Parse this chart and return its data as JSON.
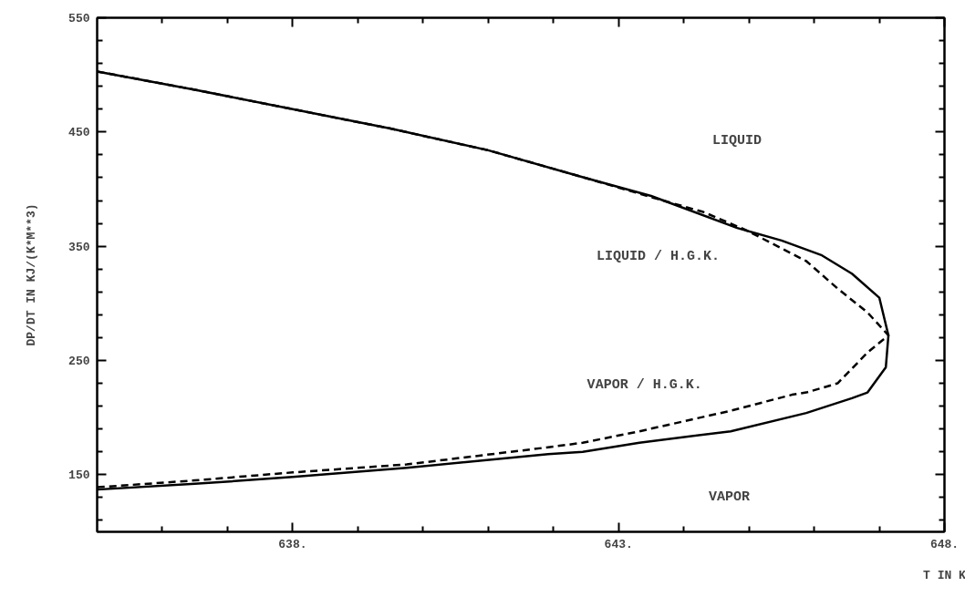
{
  "chart_data": {
    "type": "line",
    "xlabel": "T IN K",
    "ylabel": "DP/DT IN KJ/(K*M**3)",
    "xlim": [
      635,
      648
    ],
    "ylim": [
      100,
      550
    ],
    "xticks": [
      {
        "value": 636,
        "label": null
      },
      {
        "value": 637,
        "label": null
      },
      {
        "value": 638,
        "label": "638."
      },
      {
        "value": 639,
        "label": null
      },
      {
        "value": 640,
        "label": null
      },
      {
        "value": 641,
        "label": null
      },
      {
        "value": 642,
        "label": null
      },
      {
        "value": 643,
        "label": "643."
      },
      {
        "value": 644,
        "label": null
      },
      {
        "value": 645,
        "label": null
      },
      {
        "value": 646,
        "label": null
      },
      {
        "value": 647,
        "label": null
      },
      {
        "value": 648,
        "label": "648."
      }
    ],
    "yticks": [
      {
        "value": 110,
        "label": null
      },
      {
        "value": 130,
        "label": null
      },
      150,
      {
        "value": 170,
        "label": null
      },
      {
        "value": 190,
        "label": null
      },
      {
        "value": 210,
        "label": null
      },
      {
        "value": 230,
        "label": null
      },
      250,
      {
        "value": 270,
        "label": null
      },
      {
        "value": 290,
        "label": null
      },
      {
        "value": 310,
        "label": null
      },
      {
        "value": 330,
        "label": null
      },
      350,
      {
        "value": 370,
        "label": null
      },
      {
        "value": 390,
        "label": null
      },
      {
        "value": 410,
        "label": null
      },
      {
        "value": 430,
        "label": null
      },
      450,
      {
        "value": 470,
        "label": null
      },
      {
        "value": 490,
        "label": null
      },
      {
        "value": 510,
        "label": null
      },
      {
        "value": 530,
        "label": null
      },
      550
    ],
    "grid": false,
    "series": [
      {
        "color": "#000000",
        "line_style": "solid",
        "x": [
          635.0,
          636.5,
          638.0,
          639.5,
          641.0,
          642.48,
          643.5,
          644.82,
          645.5,
          646.12,
          646.58,
          647.0,
          647.14,
          647.1,
          646.82,
          646.58,
          645.88,
          644.72,
          643.32,
          642.45,
          641.92,
          639.75,
          638.0,
          636.5,
          635.0
        ],
        "values": [
          503,
          487,
          470,
          453,
          434,
          410,
          394,
          366,
          355,
          342,
          326,
          305,
          272,
          244,
          222,
          217,
          204,
          188,
          178,
          170,
          168,
          156,
          148,
          142,
          137
        ]
      },
      {
        "color": "#000000",
        "line_style": "dashed",
        "x": [
          635.0,
          636.5,
          638.0,
          639.5,
          641.0,
          642.48,
          643.5,
          644.3,
          644.96,
          645.88,
          646.36,
          646.82,
          647.14,
          646.82,
          646.36,
          645.88,
          645.66,
          644.72,
          643.32,
          642.45,
          641.92,
          639.75,
          638.0,
          636.5,
          635.0
        ],
        "values": [
          503,
          487,
          470,
          453,
          434,
          410,
          393,
          380,
          364,
          337,
          313,
          292,
          272,
          257,
          230,
          222,
          220,
          206,
          188,
          178,
          174,
          159,
          152,
          145,
          139
        ]
      }
    ],
    "annotations": [
      "LIQUID",
      "LIQUID / H.G.K.",
      "VAPOR / H.G.K.",
      "VAPOR"
    ]
  }
}
